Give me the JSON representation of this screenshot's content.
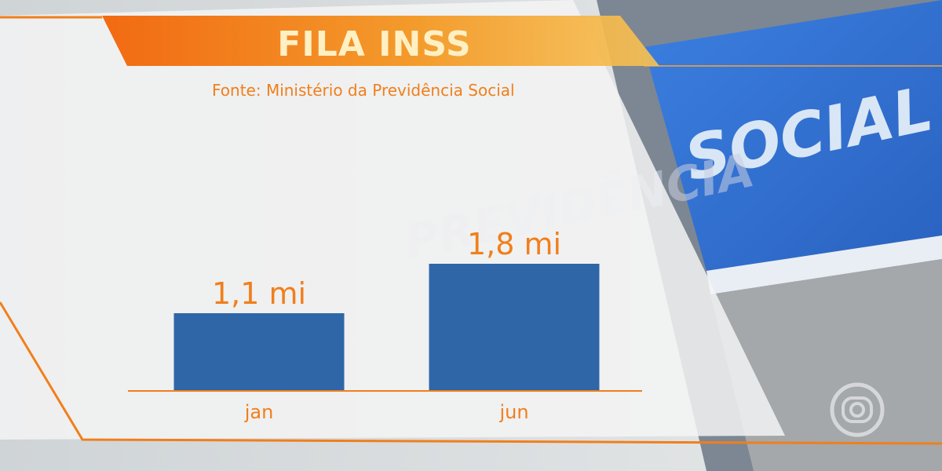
{
  "header": {
    "title": "FILA INSS",
    "source": "Fonte: Ministério da Previdência Social"
  },
  "background_sign": {
    "line1": "SOCIAL",
    "line2": "PREVIDÊNCIA"
  },
  "colors": {
    "accent": "#f07f1c",
    "bar": "#2f66a8",
    "sign_blue": "#2d6fd0",
    "panel": "#f4f4f4"
  },
  "chart_data": {
    "type": "bar",
    "categories": [
      "jan",
      "jun"
    ],
    "values": [
      1.1,
      1.8
    ],
    "value_labels": [
      "1,1 mi",
      "1,8 mi"
    ],
    "unit": "mi",
    "ylim": [
      0,
      1.8
    ],
    "grid": false,
    "legend": "none"
  },
  "logo": {
    "icon": "globo-logo-icon"
  }
}
